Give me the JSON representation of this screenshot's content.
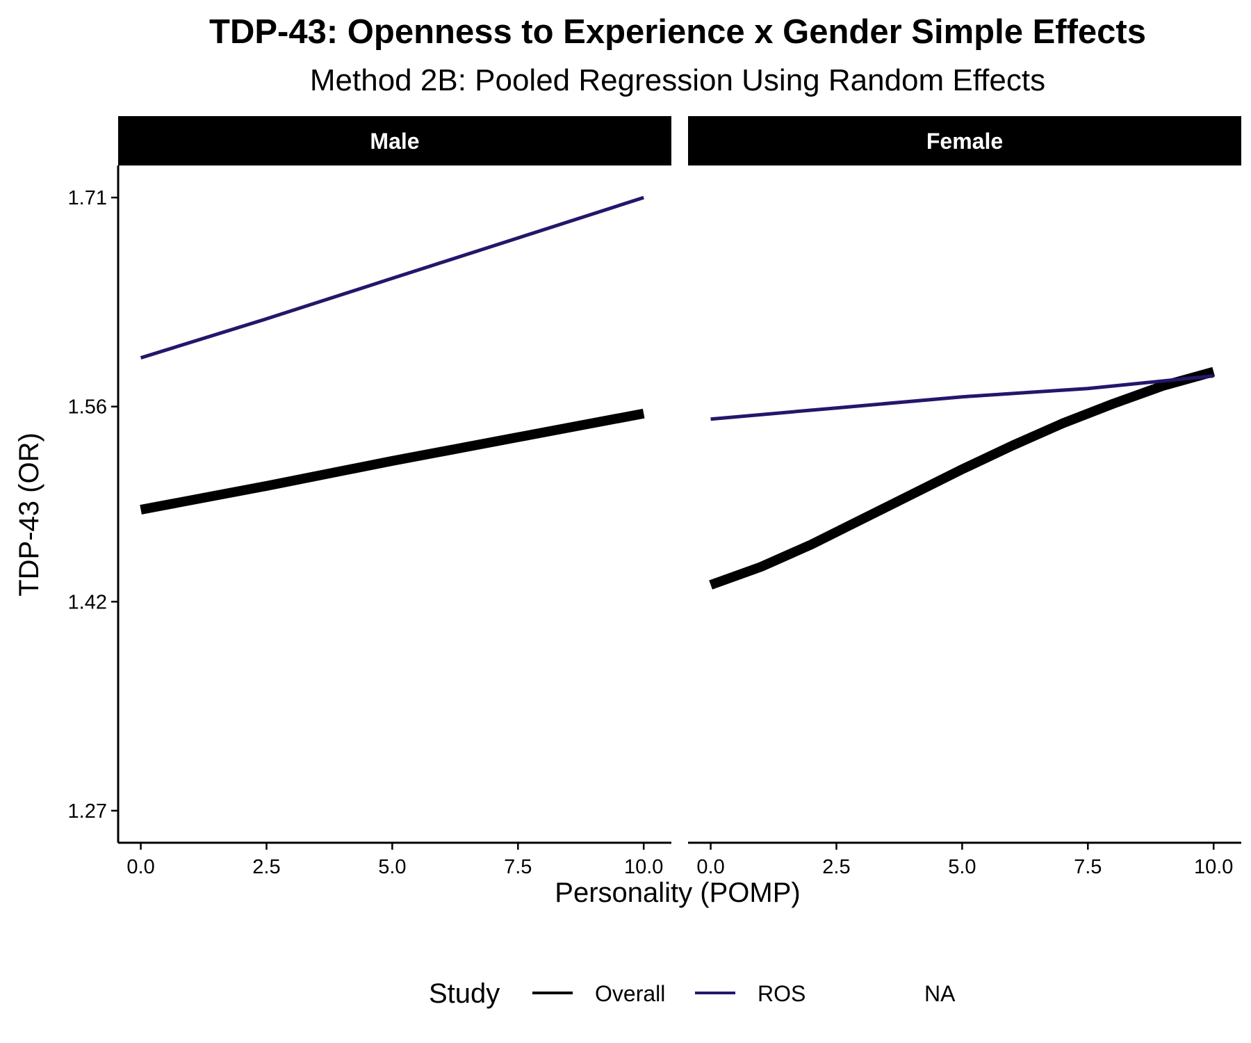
{
  "chart_data": {
    "type": "line",
    "title": "TDP-43: Openness to Experience x Gender Simple Effects",
    "subtitle": "Method 2B: Pooled Regression Using Random Effects",
    "xlabel": "Personality (POMP)",
    "ylabel": "TDP-43 (OR)",
    "xlim": [
      -0.45,
      10.55
    ],
    "ylim": [
      1.247,
      1.733
    ],
    "x_ticks": [
      0.0,
      2.5,
      5.0,
      7.5,
      10.0
    ],
    "x_tick_labels": [
      "0.0",
      "2.5",
      "5.0",
      "7.5",
      "10.0"
    ],
    "y_ticks": [
      1.27,
      1.42,
      1.56,
      1.71
    ],
    "y_tick_labels": [
      "1.27",
      "1.42",
      "1.56",
      "1.71"
    ],
    "grid": false,
    "legend": {
      "title": "Study",
      "position": "bottom",
      "entries": [
        {
          "label": "Overall",
          "color": "#000000"
        },
        {
          "label": "ROS",
          "color": "#27156b"
        },
        {
          "label": "NA",
          "color": null
        }
      ]
    },
    "panels": [
      {
        "name": "Male",
        "series": [
          {
            "name": "Overall",
            "color": "#000000",
            "x": [
              0,
              2.5,
              5,
              7.5,
              10
            ],
            "y": [
              1.486,
              1.503,
              1.521,
              1.538,
              1.555
            ]
          },
          {
            "name": "ROS",
            "color": "#27156b",
            "x": [
              0,
              2.5,
              5,
              7.5,
              10
            ],
            "y": [
              1.595,
              1.623,
              1.652,
              1.681,
              1.71
            ]
          }
        ]
      },
      {
        "name": "Female",
        "series": [
          {
            "name": "Overall",
            "color": "#000000",
            "x": [
              0,
              1,
              2,
              3,
              4,
              5,
              6,
              7,
              8,
              9,
              10
            ],
            "y": [
              1.432,
              1.445,
              1.461,
              1.479,
              1.497,
              1.515,
              1.532,
              1.548,
              1.562,
              1.575,
              1.585
            ]
          },
          {
            "name": "ROS",
            "color": "#27156b",
            "x": [
              0,
              2.5,
              5,
              7.5,
              10
            ],
            "y": [
              1.551,
              1.559,
              1.567,
              1.573,
              1.582
            ]
          }
        ]
      }
    ]
  }
}
